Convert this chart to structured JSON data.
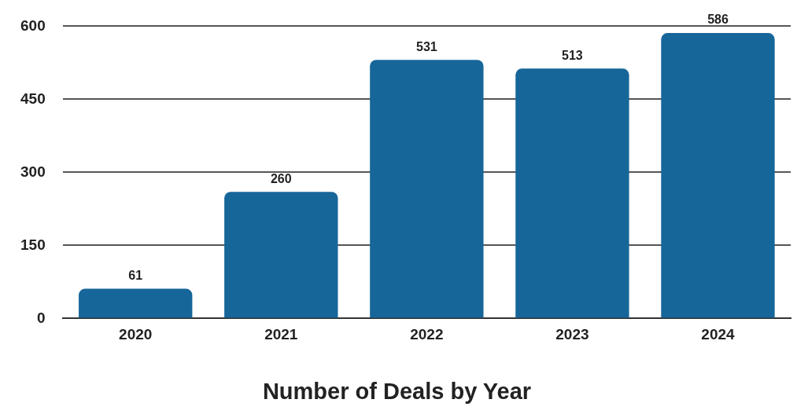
{
  "chart_data": {
    "type": "bar",
    "title": "Number of Deals by Year",
    "categories": [
      "2020",
      "2021",
      "2022",
      "2023",
      "2024"
    ],
    "values": [
      61,
      260,
      531,
      513,
      586
    ],
    "color": "#17669a",
    "ylim": [
      0,
      600
    ],
    "yticks": [
      0,
      150,
      300,
      450,
      600
    ],
    "grid": "y",
    "data_labels": true
  }
}
